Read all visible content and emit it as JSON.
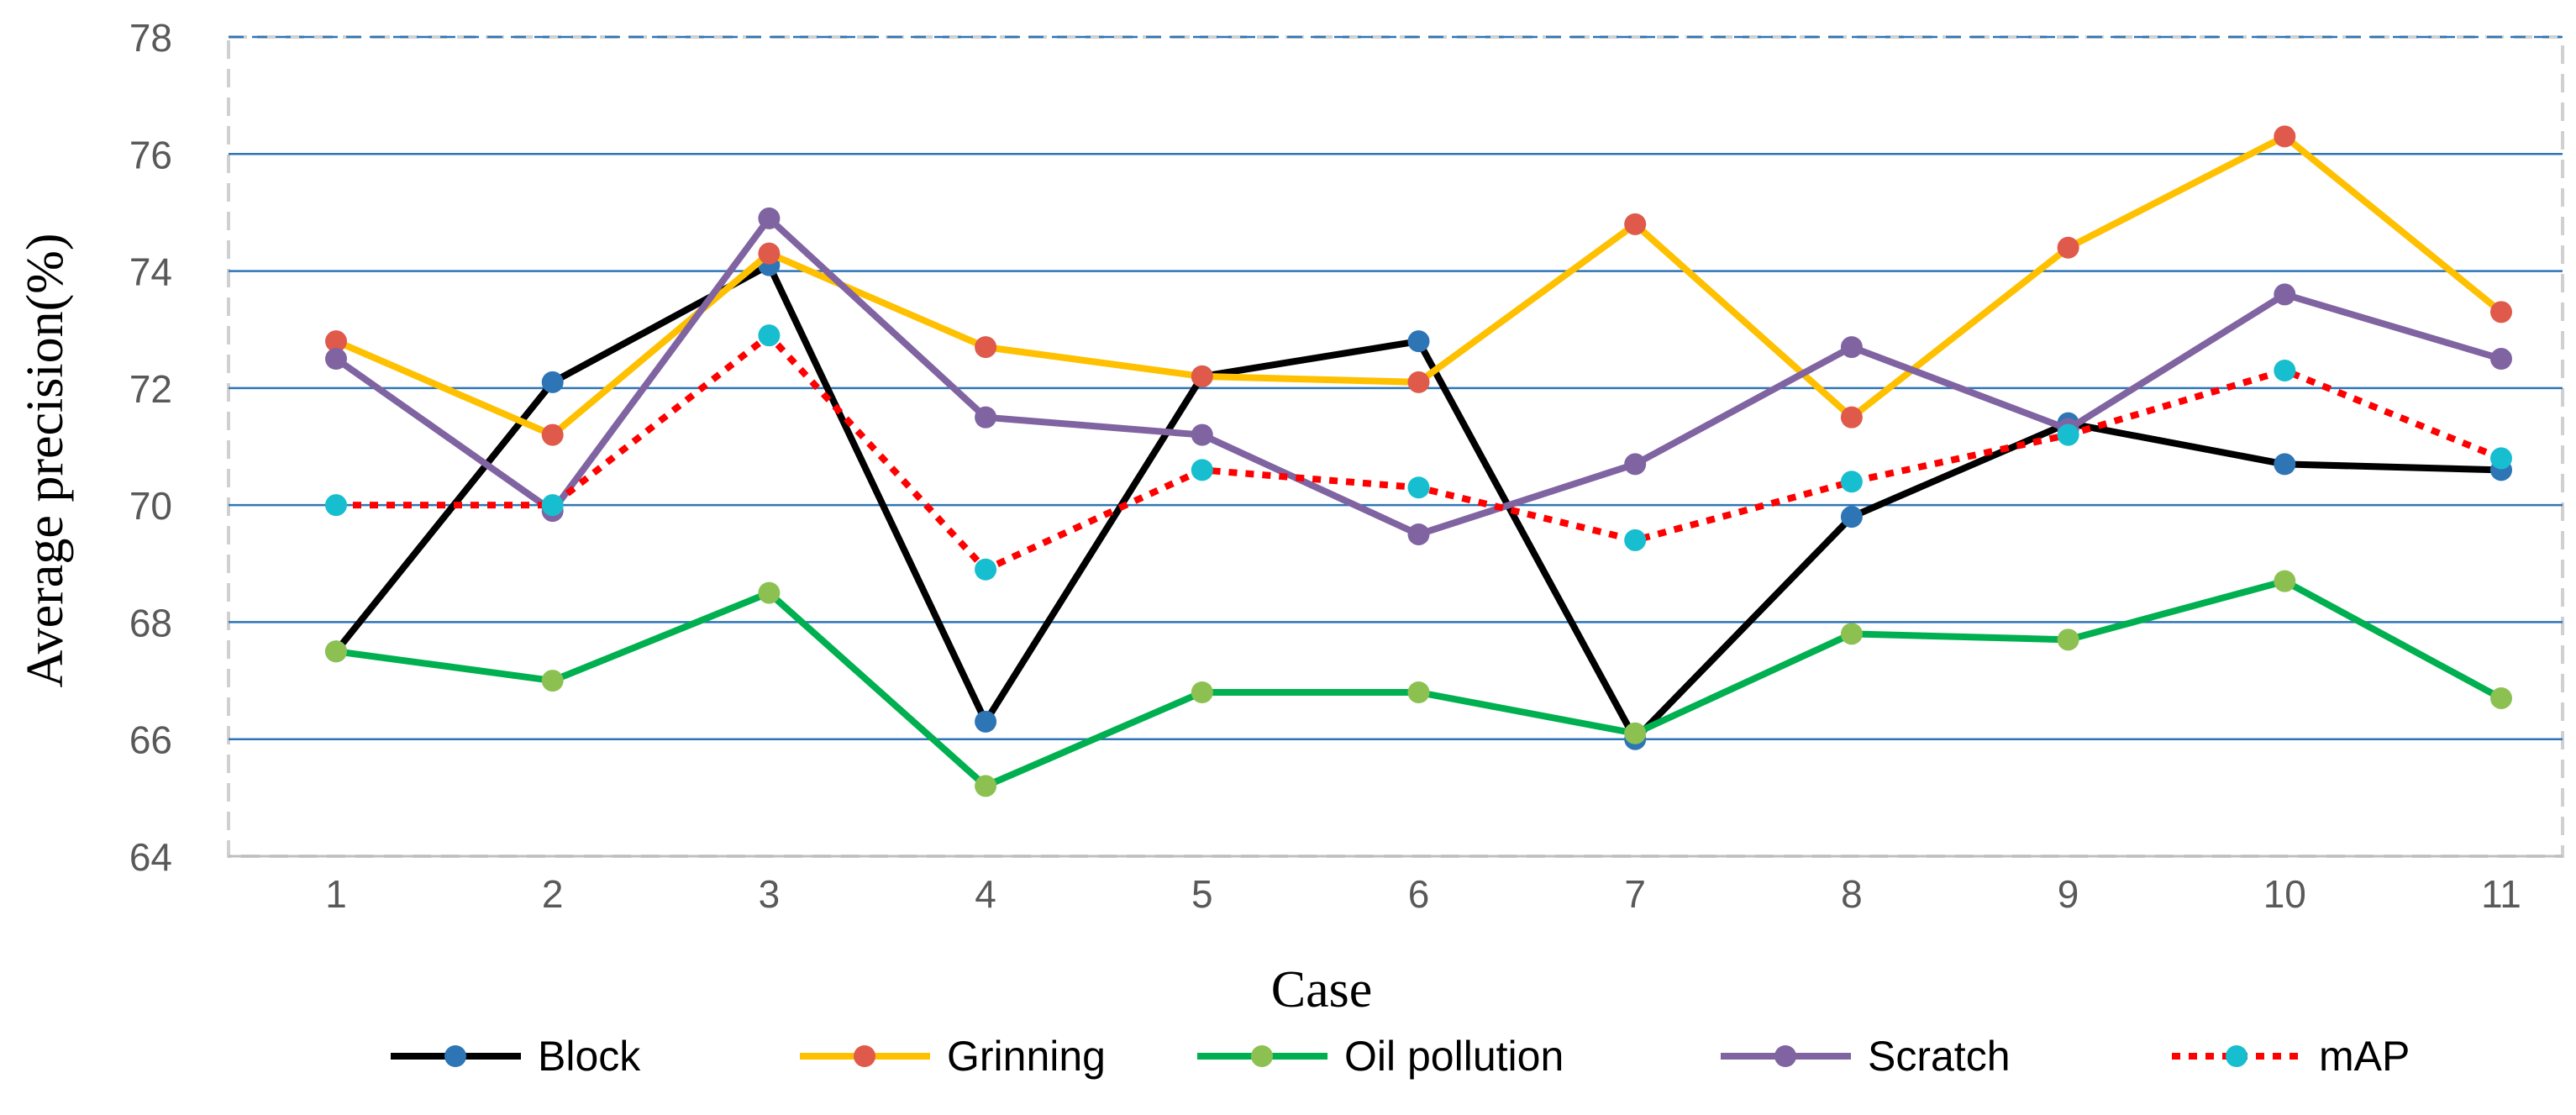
{
  "chart_data": {
    "type": "line",
    "title": "",
    "xlabel": "Case",
    "ylabel": "Average precision(%)",
    "ylim": [
      64,
      78
    ],
    "ytick_step": 2,
    "yticks": [
      "64",
      "66",
      "68",
      "70",
      "72",
      "74",
      "76",
      "78"
    ],
    "categories": [
      "1",
      "2",
      "3",
      "4",
      "5",
      "6",
      "7",
      "8",
      "9",
      "10",
      "11"
    ],
    "grid": "horizontal",
    "legend_position": "bottom",
    "series": [
      {
        "name": "Block",
        "line_color": "#000000",
        "marker_color": "#2E75B6",
        "dashed": false,
        "values": [
          67.5,
          72.1,
          74.1,
          66.3,
          72.2,
          72.8,
          66.0,
          69.8,
          71.4,
          70.7,
          70.6
        ]
      },
      {
        "name": "Grinning",
        "line_color": "#FFC000",
        "marker_color": "#E05A4B",
        "dashed": false,
        "values": [
          72.8,
          71.2,
          74.3,
          72.7,
          72.2,
          72.1,
          74.8,
          71.5,
          74.4,
          76.3,
          73.3
        ]
      },
      {
        "name": "Oil pollution",
        "line_color": "#00B050",
        "marker_color": "#8CC152",
        "dashed": false,
        "values": [
          67.5,
          67.0,
          68.5,
          65.2,
          66.8,
          66.8,
          66.1,
          67.8,
          67.7,
          68.7,
          66.7
        ]
      },
      {
        "name": "Scratch",
        "line_color": "#8064A2",
        "marker_color": "#8064A2",
        "dashed": false,
        "values": [
          72.5,
          69.9,
          74.9,
          71.5,
          71.2,
          69.5,
          70.7,
          72.7,
          71.3,
          73.6,
          72.5
        ]
      },
      {
        "name": "mAP",
        "line_color": "#FF0000",
        "marker_color": "#17BECF",
        "dashed": true,
        "values": [
          70.0,
          70.0,
          72.9,
          68.9,
          70.6,
          70.3,
          69.4,
          70.4,
          71.2,
          72.3,
          70.8
        ]
      }
    ]
  }
}
